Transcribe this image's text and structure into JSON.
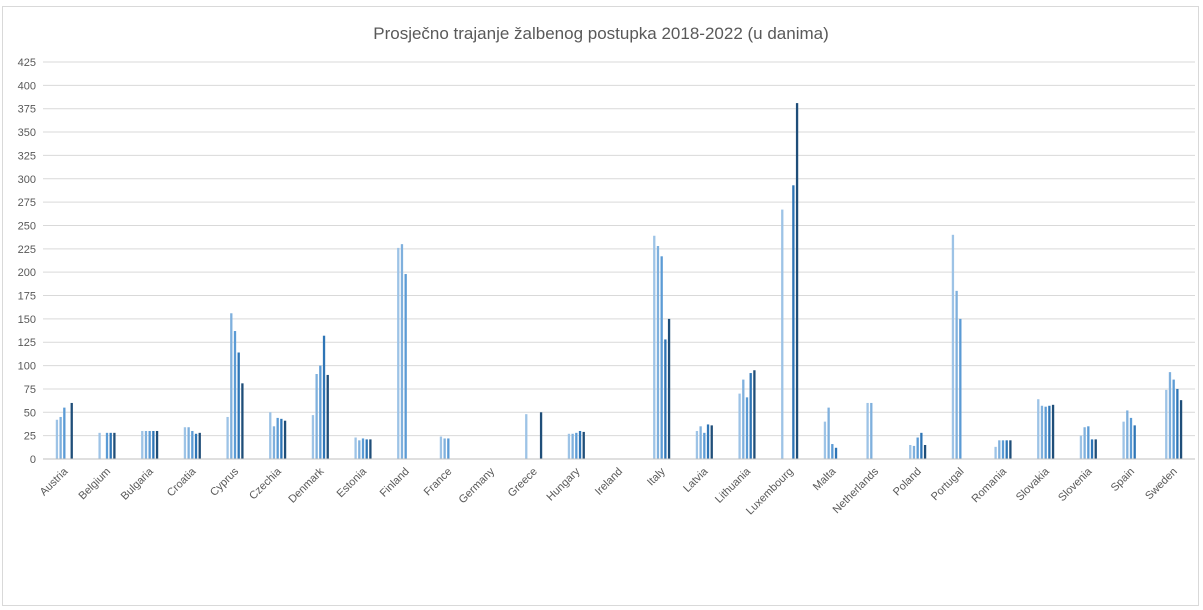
{
  "chart_data": {
    "type": "bar",
    "title": "Prosječno trajanje žalbenog postupka 2018-2022 (u danima)",
    "xlabel": "",
    "ylabel": "",
    "ylim": [
      0,
      425
    ],
    "y_ticks": [
      "0",
      "25",
      "50",
      "75",
      "100",
      "125",
      "150",
      "175",
      "200",
      "225",
      "250",
      "275",
      "300",
      "325",
      "350",
      "375",
      "400",
      "425"
    ],
    "grid": true,
    "legend": "none",
    "series_colors": [
      "#9dc3e6",
      "#7fb0dd",
      "#5b9bd5",
      "#2e75b6",
      "#1f4e79"
    ],
    "categories": [
      "Austria",
      "Belgium",
      "Bulgaria",
      "Croatia",
      "Cyprus",
      "Czechia",
      "Denmark",
      "Estonia",
      "Finland",
      "France",
      "Germany",
      "Greece",
      "Hungary",
      "Ireland",
      "Italy",
      "Latvia",
      "Lithuania",
      "Luxembourg",
      "Malta",
      "Netherlands",
      "Poland",
      "Portugal",
      "Romania",
      "Slovakia",
      "Slovenia",
      "Spain",
      "Sweden"
    ],
    "values": [
      [
        42,
        45,
        55,
        null,
        60
      ],
      [
        28,
        null,
        28,
        28,
        28
      ],
      [
        30,
        30,
        30,
        30,
        30
      ],
      [
        34,
        34,
        30,
        27,
        28
      ],
      [
        45,
        156,
        137,
        114,
        81
      ],
      [
        50,
        35,
        44,
        43,
        41
      ],
      [
        47,
        91,
        100,
        132,
        90
      ],
      [
        23,
        20,
        22,
        21,
        21
      ],
      [
        226,
        230,
        198,
        null,
        null
      ],
      [
        24,
        22,
        22,
        null,
        null
      ],
      [
        null,
        null,
        null,
        null,
        null
      ],
      [
        48,
        null,
        null,
        null,
        50
      ],
      [
        27,
        27,
        28,
        30,
        29
      ],
      [
        null,
        null,
        null,
        null,
        null
      ],
      [
        239,
        228,
        217,
        128,
        150
      ],
      [
        30,
        35,
        28,
        37,
        36
      ],
      [
        70,
        85,
        66,
        92,
        95
      ],
      [
        267,
        null,
        null,
        293,
        381
      ],
      [
        40,
        55,
        16,
        12,
        null
      ],
      [
        60,
        60,
        null,
        null,
        null
      ],
      [
        15,
        14,
        23,
        28,
        15
      ],
      [
        240,
        180,
        150,
        null,
        null
      ],
      [
        13,
        20,
        20,
        20,
        20
      ],
      [
        64,
        57,
        56,
        57,
        58
      ],
      [
        25,
        34,
        35,
        21,
        21
      ],
      [
        40,
        52,
        44,
        36,
        null
      ],
      [
        74,
        93,
        85,
        75,
        63
      ]
    ]
  }
}
